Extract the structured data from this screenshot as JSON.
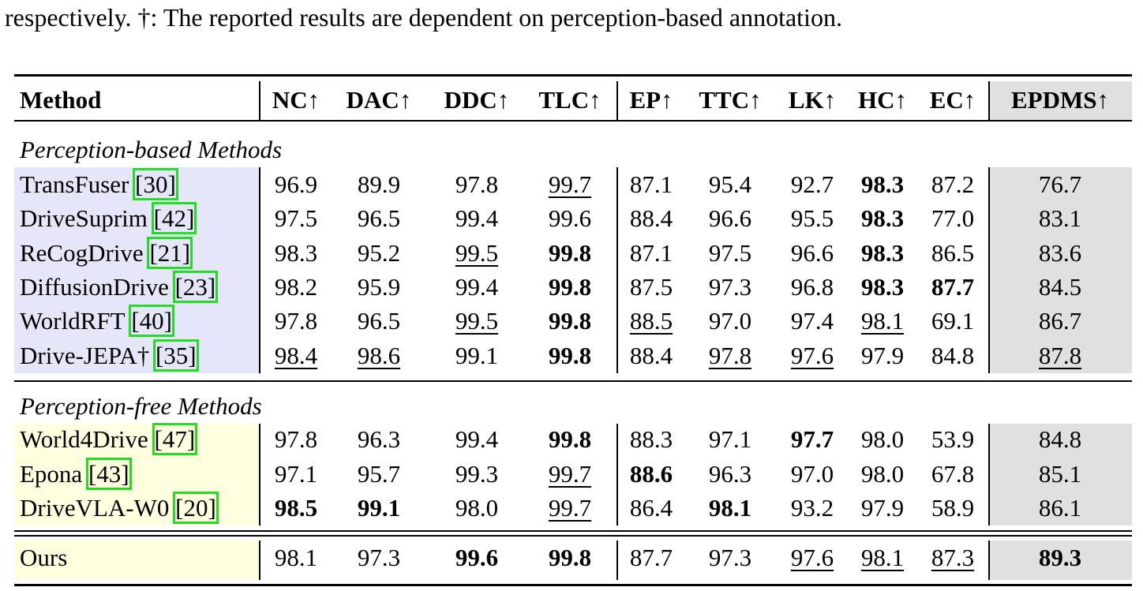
{
  "caption": "respectively. †: The reported results are dependent on perception-based annotation.",
  "table": {
    "header": [
      "Method",
      "NC↑",
      "DAC↑",
      "DDC↑",
      "TLC↑",
      "EP↑",
      "TTC↑",
      "LK↑",
      "HC↑",
      "EC↑",
      "EPDMS↑"
    ],
    "last_column_shade": "#e0e0e0",
    "citation_box_color": "#22dd22",
    "sections": [
      {
        "label": "Perception-based Methods",
        "shade": "#e6e6fb",
        "rows": [
          {
            "method": "TransFuser",
            "cite": "[30]",
            "cells": [
              "96.9",
              "89.9",
              "97.8",
              {
                "text": "99.7",
                "format": "underline"
              },
              "87.1",
              "95.4",
              "92.7",
              {
                "text": "98.3",
                "format": "bold"
              },
              "87.2",
              "76.7"
            ]
          },
          {
            "method": "DriveSuprim",
            "cite": "[42]",
            "cells": [
              "97.5",
              "96.5",
              "99.4",
              "99.6",
              "88.4",
              "96.6",
              "95.5",
              {
                "text": "98.3",
                "format": "bold"
              },
              "77.0",
              "83.1"
            ]
          },
          {
            "method": "ReCogDrive",
            "cite": "[21]",
            "cells": [
              "98.3",
              "95.2",
              {
                "text": "99.5",
                "format": "underline"
              },
              {
                "text": "99.8",
                "format": "bold"
              },
              "87.1",
              "97.5",
              "96.6",
              {
                "text": "98.3",
                "format": "bold"
              },
              "86.5",
              "83.6"
            ]
          },
          {
            "method": "DiffusionDrive",
            "cite": "[23]",
            "cells": [
              "98.2",
              "95.9",
              "99.4",
              {
                "text": "99.8",
                "format": "bold"
              },
              "87.5",
              "97.3",
              "96.8",
              {
                "text": "98.3",
                "format": "bold"
              },
              {
                "text": "87.7",
                "format": "bold"
              },
              "84.5"
            ]
          },
          {
            "method": "WorldRFT",
            "cite": "[40]",
            "cells": [
              "97.8",
              "96.5",
              {
                "text": "99.5",
                "format": "underline"
              },
              {
                "text": "99.8",
                "format": "bold"
              },
              {
                "text": "88.5",
                "format": "underline"
              },
              "97.0",
              "97.4",
              {
                "text": "98.1",
                "format": "underline"
              },
              "69.1",
              "86.7"
            ]
          },
          {
            "method": "Drive-JEPA†",
            "cite": "[35]",
            "cells": [
              {
                "text": "98.4",
                "format": "underline"
              },
              {
                "text": "98.6",
                "format": "underline"
              },
              "99.1",
              {
                "text": "99.8",
                "format": "bold"
              },
              "88.4",
              {
                "text": "97.8",
                "format": "underline"
              },
              {
                "text": "97.6",
                "format": "underline"
              },
              "97.9",
              "84.8",
              {
                "text": "87.8",
                "format": "underline"
              }
            ]
          }
        ]
      },
      {
        "label": "Perception-free Methods",
        "shade": "#ffffe0",
        "rows": [
          {
            "method": "World4Drive",
            "cite": "[47]",
            "cells": [
              "97.8",
              "96.3",
              "99.4",
              {
                "text": "99.8",
                "format": "bold"
              },
              "88.3",
              "97.1",
              {
                "text": "97.7",
                "format": "bold"
              },
              "98.0",
              "53.9",
              "84.8"
            ]
          },
          {
            "method": "Epona",
            "cite": "[43]",
            "cells": [
              "97.1",
              "95.7",
              "99.3",
              {
                "text": "99.7",
                "format": "underline"
              },
              {
                "text": "88.6",
                "format": "bold"
              },
              "96.3",
              "97.0",
              "98.0",
              "67.8",
              "85.1"
            ]
          },
          {
            "method": "DriveVLA-W0",
            "cite": "[20]",
            "cells": [
              {
                "text": "98.5",
                "format": "bold"
              },
              {
                "text": "99.1",
                "format": "bold"
              },
              "98.0",
              {
                "text": "99.7",
                "format": "underline"
              },
              "86.4",
              {
                "text": "98.1",
                "format": "bold"
              },
              "93.2",
              "97.9",
              "58.9",
              "86.1"
            ]
          }
        ]
      },
      {
        "shade": "#ffffe0",
        "rows": [
          {
            "method": "Ours",
            "cells": [
              "98.1",
              "97.3",
              {
                "text": "99.6",
                "format": "bold"
              },
              {
                "text": "99.8",
                "format": "bold"
              },
              "87.7",
              "97.3",
              {
                "text": "97.6",
                "format": "underline"
              },
              {
                "text": "98.1",
                "format": "underline"
              },
              {
                "text": "87.3",
                "format": "underline"
              },
              {
                "text": "89.3",
                "format": "bold"
              }
            ]
          }
        ]
      }
    ]
  }
}
